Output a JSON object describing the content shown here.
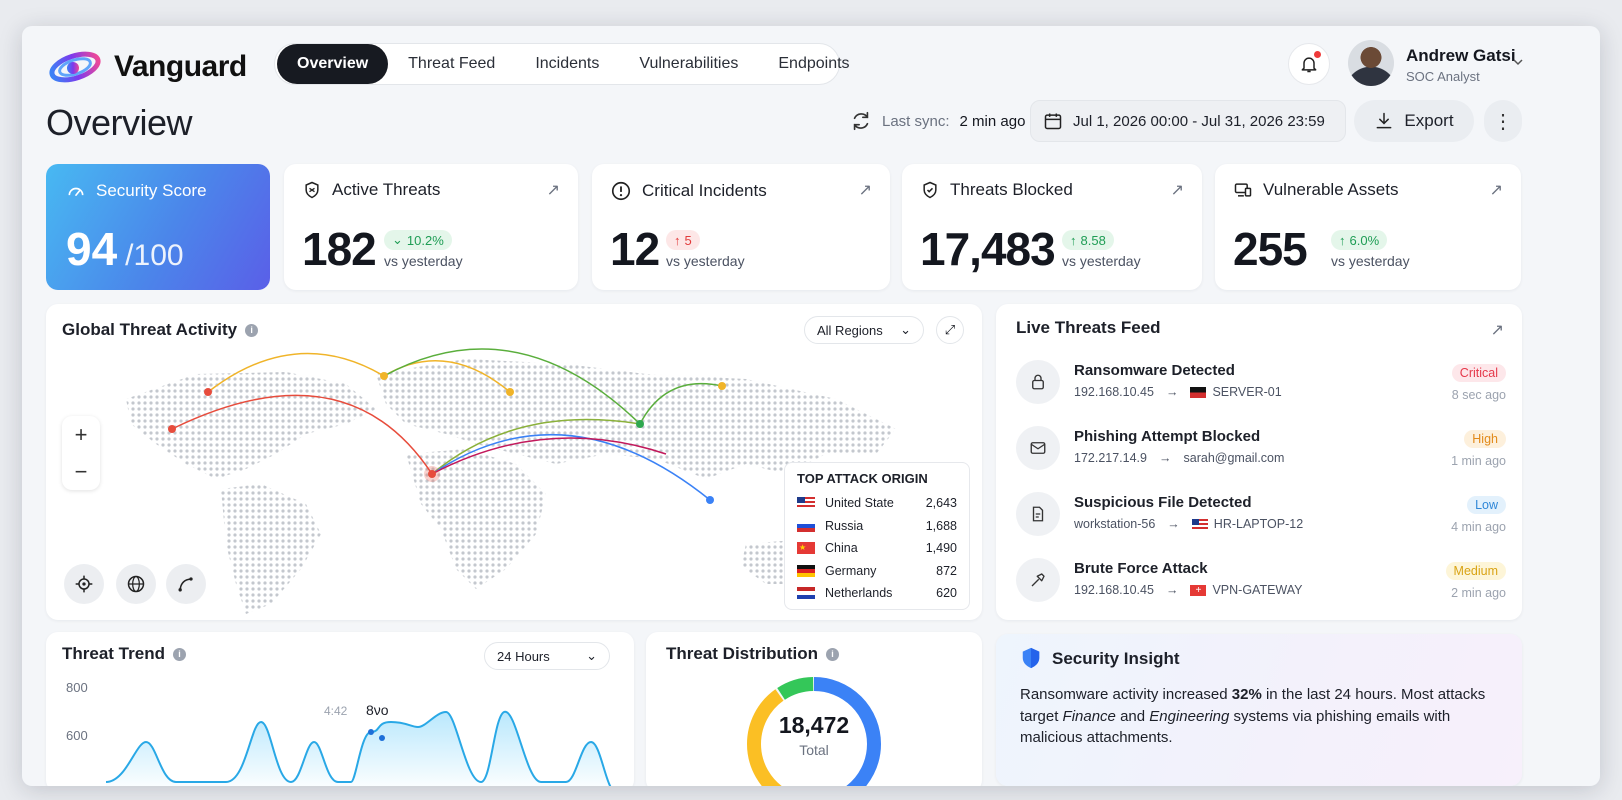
{
  "brand": {
    "name": "Vanguard"
  },
  "nav": {
    "tabs": [
      {
        "label": "Overview",
        "active": true
      },
      {
        "label": "Threat Feed"
      },
      {
        "label": "Incidents"
      },
      {
        "label": "Vulnerabilities"
      },
      {
        "label": "Endpoints"
      }
    ]
  },
  "user": {
    "name": "Andrew Gatsi",
    "role": "SOC Analyst"
  },
  "header": {
    "title": "Overview",
    "sync_label": "Last sync:",
    "sync_value": "2 min ago",
    "date_range": "Jul 1, 2026 00:00 - Jul 31, 2026 23:59",
    "export_label": "Export"
  },
  "score": {
    "label": "Security Score",
    "value": "94",
    "max": "/100"
  },
  "stats": [
    {
      "label": "Active Threats",
      "value": "182",
      "delta": "10.2%",
      "dir": "down",
      "vs": "vs yesterday"
    },
    {
      "label": "Critical Incidents",
      "value": "12",
      "delta": "5",
      "dir": "up",
      "vs": "vs yesterday"
    },
    {
      "label": "Threats Blocked",
      "value": "17,483",
      "delta": "8.58",
      "dir": "up",
      "vs": "vs yesterday"
    },
    {
      "label": "Vulnerable Assets",
      "value": "255",
      "delta": "6.0%",
      "dir": "up",
      "vs": "vs yesterday"
    }
  ],
  "map": {
    "title": "Global Threat Activity",
    "region_select": "All Regions",
    "origin": {
      "title": "TOP ATTACK ORIGIN",
      "rows": [
        {
          "country": "United State",
          "count": "2,643",
          "flag": "us"
        },
        {
          "country": "Russia",
          "count": "1,688",
          "flag": "ru"
        },
        {
          "country": "China",
          "count": "1,490",
          "flag": "cn"
        },
        {
          "country": "Germany",
          "count": "872",
          "flag": "de"
        },
        {
          "country": "Netherlands",
          "count": "620",
          "flag": "nl"
        }
      ]
    }
  },
  "feed": {
    "title": "Live Threats Feed",
    "items": [
      {
        "title": "Ransomware Detected",
        "source": "192.168.10.45",
        "target": "SERVER-01",
        "severity": "Critical",
        "time": "8 sec ago",
        "sev_bg": "#fde7ea",
        "sev_fg": "#e5384a",
        "icon": "lock-icon"
      },
      {
        "title": "Phishing Attempt Blocked",
        "source": "172.217.14.9",
        "target": "sarah@gmail.com",
        "severity": "High",
        "time": "1 min ago",
        "sev_bg": "#fdf0dc",
        "sev_fg": "#e28a1a",
        "icon": "mail-icon"
      },
      {
        "title": "Suspicious File Detected",
        "source": "workstation-56",
        "target": "HR-LAPTOP-12",
        "severity": "Low",
        "time": "4 min ago",
        "sev_bg": "#e3f1fc",
        "sev_fg": "#2f87d8",
        "icon": "file-icon"
      },
      {
        "title": "Brute Force Attack",
        "source": "192.168.10.45",
        "target": "VPN-GATEWAY",
        "severity": "Medium",
        "time": "2 min ago",
        "sev_bg": "#fdf5d8",
        "sev_fg": "#d9a314",
        "icon": "hammer-icon"
      }
    ]
  },
  "trend": {
    "title": "Threat Trend",
    "range_select": "24 Hours",
    "y_ticks": [
      "800",
      "600"
    ],
    "annotation_a": "4:42",
    "annotation_b": "8νο"
  },
  "distribution": {
    "title": "Threat Distribution",
    "total": "18,472",
    "total_label": "Total"
  },
  "insight": {
    "title": "Security Insight",
    "t1": "Ransomware activity increased ",
    "t2": "32%",
    "t3": " in the last 24 hours. Most attacks target ",
    "t4": "Finance",
    "t5": " and ",
    "t6": "Engineering",
    "t7": " systems via phishing emails with malicious attachments."
  },
  "colors": {
    "accent": "#171a21",
    "score_from": "#48b9f2",
    "score_to": "#5a5fe8"
  }
}
